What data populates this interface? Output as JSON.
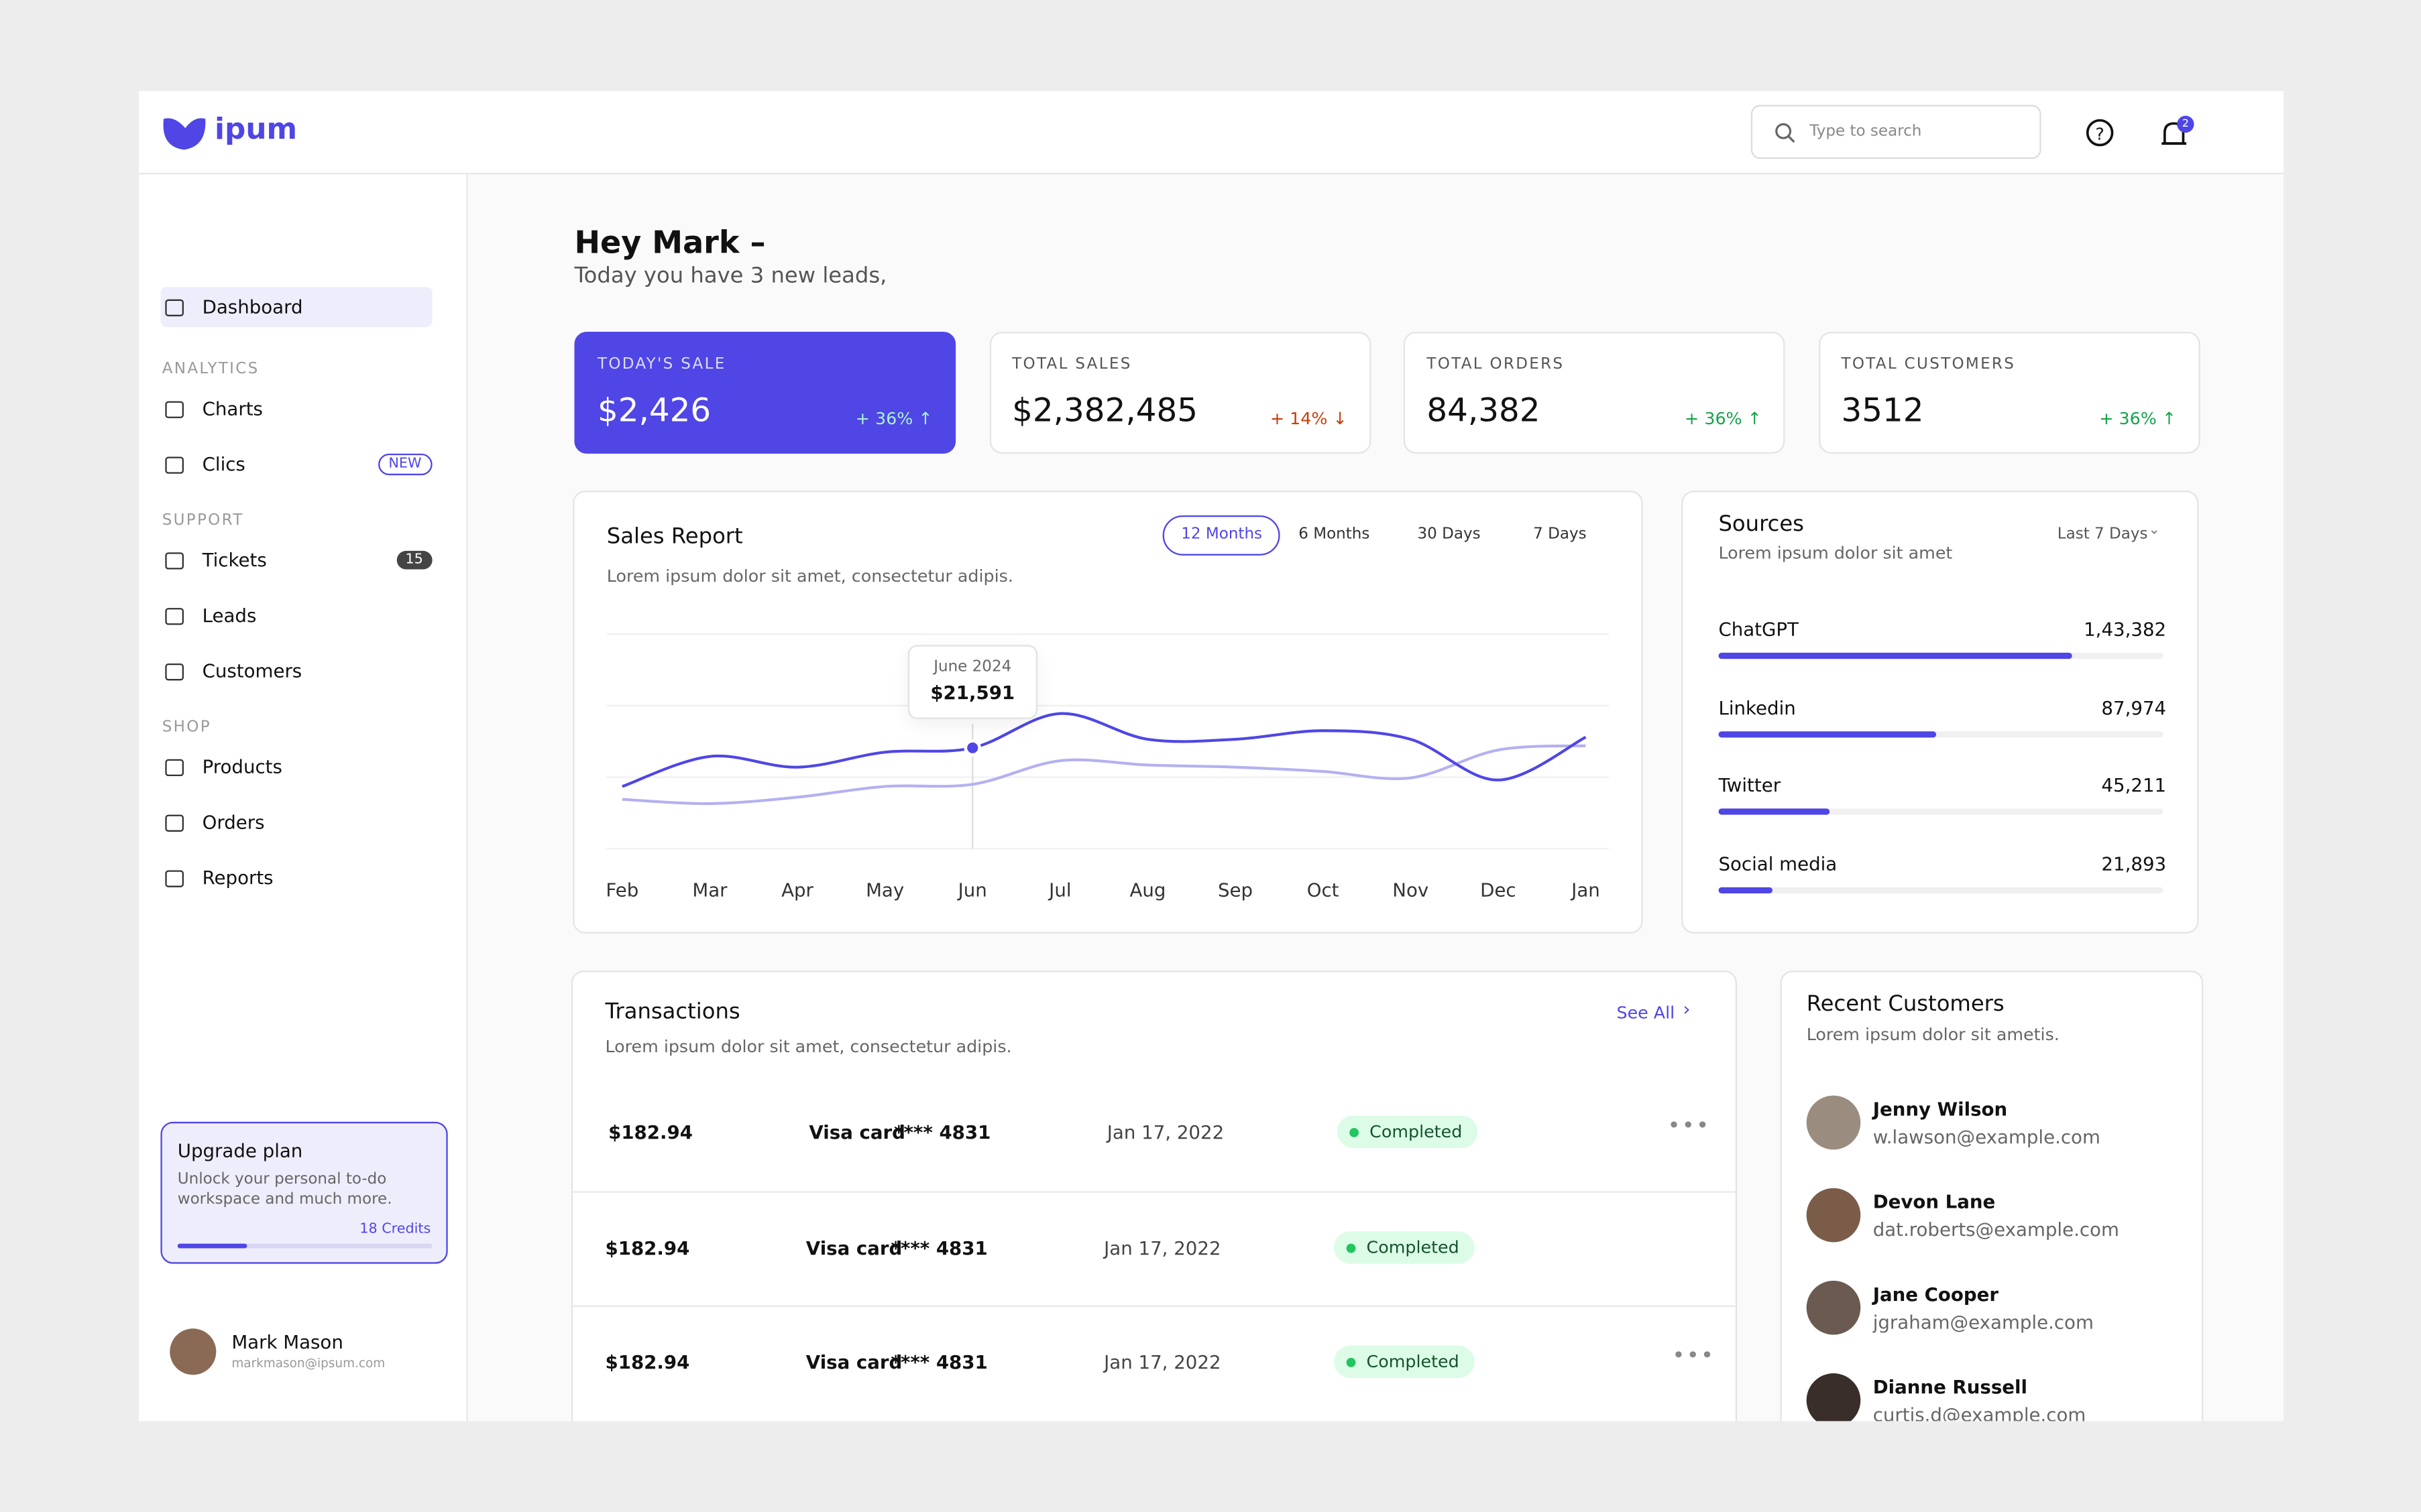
{
  "brand": "ipum",
  "search_placeholder": "Type to search",
  "notification_count": "2",
  "sidebar": {
    "active": "Dashboard",
    "sections": [
      {
        "items": [
          {
            "label": "Dashboard"
          }
        ]
      },
      {
        "title": "ANALYTICS",
        "items": [
          {
            "label": "Charts"
          },
          {
            "label": "Clics",
            "badge": "NEW"
          }
        ]
      },
      {
        "title": "SUPPORT",
        "items": [
          {
            "label": "Tickets",
            "badge": "15"
          },
          {
            "label": "Leads"
          },
          {
            "label": "Customers"
          }
        ]
      },
      {
        "title": "SHOP",
        "items": [
          {
            "label": "Products"
          },
          {
            "label": "Orders"
          },
          {
            "label": "Reports"
          }
        ]
      }
    ],
    "upgrade": {
      "title": "Upgrade plan",
      "text": "Unlock your personal to-do workspace and much more.",
      "credits": "18 Credits"
    },
    "user": {
      "name": "Mark Mason",
      "email": "markmason@ipsum.com"
    }
  },
  "greeting": {
    "title": "Hey Mark –",
    "subtitle": "Today you have 3 new leads,"
  },
  "stats": [
    {
      "label": "TODAY'S SALE",
      "value": "$2,426",
      "change": "+ 36% ↑",
      "trend": "up"
    },
    {
      "label": "TOTAL SALES",
      "value": "$2,382,485",
      "change": "+ 14% ↓",
      "trend": "down"
    },
    {
      "label": "TOTAL ORDERS",
      "value": "84,382",
      "change": "+ 36% ↑",
      "trend": "up"
    },
    {
      "label": "TOTAL CUSTOMERS",
      "value": "3512",
      "change": "+ 36% ↑",
      "trend": "up"
    }
  ],
  "sales_report": {
    "title": "Sales Report",
    "subtitle": "Lorem ipsum dolor sit amet, consectetur adipis.",
    "tabs": [
      "12 Months",
      "6 Months",
      "30 Days",
      "7 Days"
    ],
    "active_tab": "12 Months",
    "chart_data": {
      "type": "line",
      "categories": [
        "Feb",
        "Mar",
        "Apr",
        "May",
        "Jun",
        "Jul",
        "Aug",
        "Sep",
        "Oct",
        "Nov",
        "Dec",
        "Jan"
      ],
      "ylim": [
        0,
        100
      ],
      "series": [
        {
          "color": "#4f46e5",
          "values": [
            29,
            43,
            38,
            45,
            47,
            63,
            51,
            51,
            55,
            51,
            32,
            52
          ]
        },
        {
          "color": "#b4b0f2",
          "values": [
            23,
            21,
            24,
            29,
            30,
            41,
            39,
            38,
            36,
            33,
            46,
            48
          ]
        }
      ],
      "tooltip": {
        "category": "June 2024",
        "value": "$21,591"
      }
    }
  },
  "sources": {
    "title": "Sources",
    "subtitle": "Lorem ipsum dolor sit amet",
    "filter": "Last 7 Days",
    "xlim": [
      0,
      180000
    ],
    "color": "#4f46e5",
    "items": [
      {
        "name": "ChatGPT",
        "value": 143382,
        "value_label": "1,43,382"
      },
      {
        "name": "Linkedin",
        "value": 87974,
        "value_label": "87,974"
      },
      {
        "name": "Twitter",
        "value": 45211,
        "value_label": "45,211"
      },
      {
        "name": "Social media",
        "value": 21893,
        "value_label": "21,893"
      }
    ]
  },
  "transactions": {
    "title": "Transactions",
    "subtitle": "Lorem ipsum dolor sit amet, consectetur adipis.",
    "see_all": "See All",
    "rows": [
      {
        "amount": "$182.94",
        "method": "Visa card",
        "card": "**** 4831",
        "date": "Jan 17, 2022",
        "status": "Completed"
      },
      {
        "amount": "$182.94",
        "method": "Visa card",
        "card": "**** 4831",
        "date": "Jan 17, 2022",
        "status": "Completed"
      },
      {
        "amount": "$182.94",
        "method": "Visa card",
        "card": "**** 4831",
        "date": "Jan 17, 2022",
        "status": "Completed"
      }
    ]
  },
  "recent_customers": {
    "title": "Recent Customers",
    "subtitle": "Lorem ipsum dolor sit ametis.",
    "items": [
      {
        "name": "Jenny Wilson",
        "email": "w.lawson@example.com"
      },
      {
        "name": "Devon Lane",
        "email": "dat.roberts@example.com"
      },
      {
        "name": "Jane Cooper",
        "email": "jgraham@example.com"
      },
      {
        "name": "Dianne Russell",
        "email": "curtis.d@example.com"
      }
    ]
  }
}
